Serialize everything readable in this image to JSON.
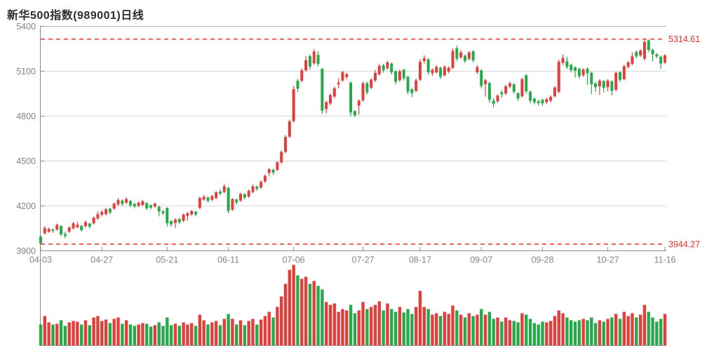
{
  "header": {
    "title": "新华500指数(989001)日线"
  },
  "colors": {
    "up": "#e23e3c",
    "down": "#25a94b",
    "ref_line": "#f15f5f",
    "ref_text": "#e62e2e",
    "axis": "#8a8a8a",
    "top_border": "#b3b3b3",
    "grid": "#d9d9d9",
    "vol_baseline": "#9a9a9a",
    "tick_text": "#848484",
    "title_text": "#2d2d2d",
    "background": "#ffffff"
  },
  "chart_data": {
    "type": "candlestick",
    "title": "新华500指数(989001)日线",
    "symbol": "989001",
    "period_label": "日线",
    "legend_position": "none",
    "grid": true,
    "y_axis": {
      "min": 3900,
      "max": 5400,
      "ticks": [
        5400,
        5100,
        4800,
        4500,
        4200,
        3900
      ]
    },
    "x_axis": {
      "tick_labels": [
        "04-03",
        "04-27",
        "05-21",
        "06-11",
        "07-06",
        "07-27",
        "08-17",
        "09-07",
        "09-28",
        "10-27",
        "11-16"
      ],
      "tick_indices": [
        0,
        15,
        31,
        46,
        62,
        79,
        93,
        108,
        123,
        139,
        153
      ]
    },
    "reference_lines": [
      {
        "value": 5314.61,
        "label": "5314.61"
      },
      {
        "value": 3944.27,
        "label": "3944.27"
      }
    ],
    "candles": {
      "columns": [
        "open",
        "close",
        "low",
        "high",
        "volume_rel"
      ],
      "rows": [
        [
          3995,
          3948,
          3944,
          4002,
          30
        ],
        [
          4017,
          4052,
          4008,
          4064,
          42
        ],
        [
          4028,
          4046,
          4020,
          4056,
          33
        ],
        [
          4042,
          4034,
          4020,
          4050,
          30
        ],
        [
          4042,
          4074,
          4034,
          4082,
          31
        ],
        [
          4066,
          4010,
          3998,
          4072,
          36
        ],
        [
          4012,
          3999,
          3984,
          4028,
          28
        ],
        [
          4028,
          4056,
          4020,
          4064,
          33
        ],
        [
          4050,
          4084,
          4042,
          4092,
          35
        ],
        [
          4058,
          4074,
          4050,
          4094,
          34
        ],
        [
          4066,
          4038,
          4028,
          4072,
          30
        ],
        [
          4064,
          4092,
          4056,
          4102,
          36
        ],
        [
          4082,
          4062,
          4050,
          4088,
          29
        ],
        [
          4084,
          4121,
          4076,
          4130,
          40
        ],
        [
          4116,
          4145,
          4108,
          4163,
          42
        ],
        [
          4141,
          4159,
          4130,
          4172,
          35
        ],
        [
          4145,
          4178,
          4136,
          4186,
          37
        ],
        [
          4181,
          4156,
          4144,
          4189,
          32
        ],
        [
          4182,
          4215,
          4173,
          4223,
          38
        ],
        [
          4210,
          4239,
          4200,
          4253,
          40
        ],
        [
          4236,
          4213,
          4200,
          4243,
          31
        ],
        [
          4221,
          4246,
          4212,
          4257,
          36
        ],
        [
          4233,
          4204,
          4192,
          4239,
          30
        ],
        [
          4213,
          4197,
          4185,
          4221,
          28
        ],
        [
          4201,
          4221,
          4192,
          4229,
          30
        ],
        [
          4206,
          4231,
          4198,
          4239,
          32
        ],
        [
          4219,
          4184,
          4172,
          4225,
          31
        ],
        [
          4204,
          4189,
          4176,
          4211,
          27
        ],
        [
          4196,
          4216,
          4186,
          4223,
          29
        ],
        [
          4196,
          4163,
          4130,
          4201,
          33
        ],
        [
          4163,
          4151,
          4138,
          4173,
          28
        ],
        [
          4187,
          4084,
          4062,
          4191,
          40
        ],
        [
          4099,
          4077,
          4062,
          4105,
          29
        ],
        [
          4086,
          4109,
          4052,
          4117,
          31
        ],
        [
          4113,
          4091,
          4078,
          4119,
          28
        ],
        [
          4101,
          4141,
          4092,
          4149,
          33
        ],
        [
          4133,
          4151,
          4102,
          4159,
          30
        ],
        [
          4143,
          4166,
          4134,
          4173,
          32
        ],
        [
          4161,
          4143,
          4130,
          4167,
          28
        ],
        [
          4187,
          4253,
          4178,
          4261,
          44
        ],
        [
          4243,
          4261,
          4234,
          4273,
          36
        ],
        [
          4256,
          4233,
          4222,
          4263,
          30
        ],
        [
          4241,
          4266,
          4232,
          4273,
          33
        ],
        [
          4253,
          4291,
          4244,
          4299,
          35
        ],
        [
          4296,
          4283,
          4270,
          4311,
          29
        ],
        [
          4293,
          4331,
          4284,
          4347,
          38
        ],
        [
          4321,
          4166,
          4150,
          4327,
          45
        ],
        [
          4176,
          4246,
          4166,
          4253,
          38
        ],
        [
          4243,
          4223,
          4210,
          4249,
          30
        ],
        [
          4236,
          4281,
          4226,
          4289,
          36
        ],
        [
          4279,
          4256,
          4244,
          4285,
          29
        ],
        [
          4263,
          4301,
          4254,
          4309,
          35
        ],
        [
          4293,
          4331,
          4284,
          4343,
          38
        ],
        [
          4329,
          4313,
          4300,
          4337,
          30
        ],
        [
          4323,
          4361,
          4314,
          4369,
          37
        ],
        [
          4363,
          4401,
          4354,
          4411,
          42
        ],
        [
          4421,
          4445,
          4401,
          4453,
          48
        ],
        [
          4441,
          4423,
          4406,
          4449,
          40
        ],
        [
          4441,
          4491,
          4432,
          4499,
          55
        ],
        [
          4491,
          4561,
          4482,
          4571,
          70
        ],
        [
          4561,
          4661,
          4552,
          4673,
          88
        ],
        [
          4663,
          4765,
          4654,
          4776,
          108
        ],
        [
          4767,
          4980,
          4758,
          5001,
          115
        ],
        [
          5036,
          4983,
          4960,
          5049,
          100
        ],
        [
          5036,
          5106,
          5026,
          5119,
          95
        ],
        [
          5106,
          5173,
          5096,
          5201,
          98
        ],
        [
          5201,
          5131,
          5112,
          5213,
          88
        ],
        [
          5153,
          5231,
          5144,
          5247,
          92
        ],
        [
          5209,
          5149,
          5132,
          5233,
          85
        ],
        [
          5116,
          4836,
          4815,
          5121,
          80
        ],
        [
          4847,
          4894,
          4820,
          4903,
          62
        ],
        [
          4885,
          4941,
          4872,
          4951,
          58
        ],
        [
          4931,
          4986,
          4920,
          4997,
          60
        ],
        [
          5013,
          5023,
          4985,
          5053,
          48
        ],
        [
          5038,
          5094,
          5028,
          5103,
          52
        ],
        [
          5061,
          5080,
          5046,
          5089,
          50
        ],
        [
          5024,
          4824,
          4800,
          5031,
          58
        ],
        [
          4833,
          4805,
          4792,
          4841,
          46
        ],
        [
          4871,
          4903,
          4810,
          4913,
          50
        ],
        [
          4906,
          5019,
          4896,
          5031,
          62
        ],
        [
          5021,
          4959,
          4944,
          5029,
          52
        ],
        [
          4989,
          5043,
          4980,
          5053,
          55
        ],
        [
          5038,
          5089,
          5028,
          5109,
          58
        ],
        [
          5080,
          5136,
          5070,
          5147,
          63
        ],
        [
          5139,
          5107,
          5090,
          5149,
          50
        ],
        [
          5120,
          5159,
          5110,
          5171,
          60
        ],
        [
          5151,
          5093,
          5078,
          5159,
          52
        ],
        [
          5099,
          5029,
          5012,
          5107,
          48
        ],
        [
          5039,
          5099,
          5030,
          5111,
          55
        ],
        [
          5109,
          5053,
          5038,
          5117,
          47
        ],
        [
          5063,
          4963,
          4946,
          5071,
          52
        ],
        [
          4979,
          4953,
          4928,
          4987,
          45
        ],
        [
          4969,
          5039,
          4960,
          5053,
          55
        ],
        [
          5043,
          5163,
          5034,
          5179,
          78
        ],
        [
          5169,
          5187,
          5150,
          5206,
          55
        ],
        [
          5179,
          5093,
          5076,
          5187,
          52
        ],
        [
          5087,
          5109,
          5068,
          5119,
          44
        ],
        [
          5093,
          5129,
          5084,
          5139,
          46
        ],
        [
          5123,
          5063,
          5048,
          5131,
          42
        ],
        [
          5073,
          5129,
          5064,
          5141,
          48
        ],
        [
          5097,
          5123,
          5086,
          5133,
          45
        ],
        [
          5123,
          5236,
          5114,
          5251,
          57
        ],
        [
          5253,
          5183,
          5166,
          5271,
          50
        ],
        [
          5193,
          5225,
          5182,
          5241,
          44
        ],
        [
          5203,
          5169,
          5154,
          5211,
          40
        ],
        [
          5183,
          5225,
          5172,
          5235,
          46
        ],
        [
          5233,
          5173,
          5158,
          5241,
          42
        ],
        [
          5093,
          5127,
          5082,
          5141,
          44
        ],
        [
          5106,
          5001,
          4986,
          5113,
          52
        ],
        [
          5013,
          5039,
          4930,
          5049,
          44
        ],
        [
          5021,
          4909,
          4890,
          5029,
          48
        ],
        [
          4903,
          4883,
          4858,
          4919,
          38
        ],
        [
          4899,
          4937,
          4888,
          4947,
          40
        ],
        [
          4959,
          4946,
          4922,
          4973,
          34
        ],
        [
          4951,
          4999,
          4942,
          5009,
          40
        ],
        [
          4997,
          5019,
          4986,
          5029,
          36
        ],
        [
          5013,
          4963,
          4948,
          5021,
          35
        ],
        [
          4953,
          4917,
          4902,
          4961,
          33
        ],
        [
          4933,
          5047,
          4924,
          5057,
          46
        ],
        [
          5073,
          4965,
          4950,
          5081,
          44
        ],
        [
          4963,
          4903,
          4888,
          4971,
          38
        ],
        [
          4917,
          4893,
          4878,
          4925,
          32
        ],
        [
          4899,
          4887,
          4872,
          4909,
          30
        ],
        [
          4909,
          4885,
          4868,
          4917,
          34
        ],
        [
          4893,
          4913,
          4882,
          4923,
          33
        ],
        [
          4903,
          4929,
          4892,
          4939,
          35
        ],
        [
          4933,
          4991,
          4924,
          5001,
          42
        ],
        [
          4963,
          5163,
          4952,
          5179,
          50
        ],
        [
          5156,
          5189,
          5142,
          5211,
          46
        ],
        [
          5166,
          5129,
          5114,
          5197,
          40
        ],
        [
          5143,
          5107,
          5092,
          5151,
          36
        ],
        [
          5126,
          5103,
          5058,
          5133,
          34
        ],
        [
          5116,
          5067,
          5052,
          5123,
          36
        ],
        [
          5073,
          5111,
          5062,
          5119,
          38
        ],
        [
          5116,
          5087,
          5008,
          5127,
          36
        ],
        [
          5089,
          5013,
          4948,
          5097,
          40
        ],
        [
          5019,
          4993,
          4962,
          5027,
          32
        ],
        [
          4999,
          5037,
          4942,
          5047,
          36
        ],
        [
          5033,
          4989,
          4958,
          5041,
          34
        ],
        [
          4993,
          5037,
          4966,
          5047,
          38
        ],
        [
          5031,
          4969,
          4938,
          5039,
          40
        ],
        [
          4976,
          5089,
          4966,
          5099,
          45
        ],
        [
          5093,
          5043,
          5028,
          5101,
          38
        ],
        [
          5047,
          5133,
          5038,
          5143,
          48
        ],
        [
          5129,
          5159,
          5118,
          5169,
          42
        ],
        [
          5149,
          5199,
          5140,
          5226,
          46
        ],
        [
          5229,
          5199,
          5186,
          5239,
          40
        ],
        [
          5206,
          5237,
          5196,
          5247,
          44
        ],
        [
          5184,
          5296,
          5172,
          5314.61,
          58
        ],
        [
          5306,
          5241,
          5228,
          5313,
          48
        ],
        [
          5243,
          5213,
          5165,
          5251,
          40
        ],
        [
          5213,
          5199,
          5186,
          5221,
          34
        ],
        [
          5197,
          5151,
          5115,
          5205,
          38
        ],
        [
          5158,
          5206,
          5148,
          5214,
          45
        ]
      ]
    }
  }
}
